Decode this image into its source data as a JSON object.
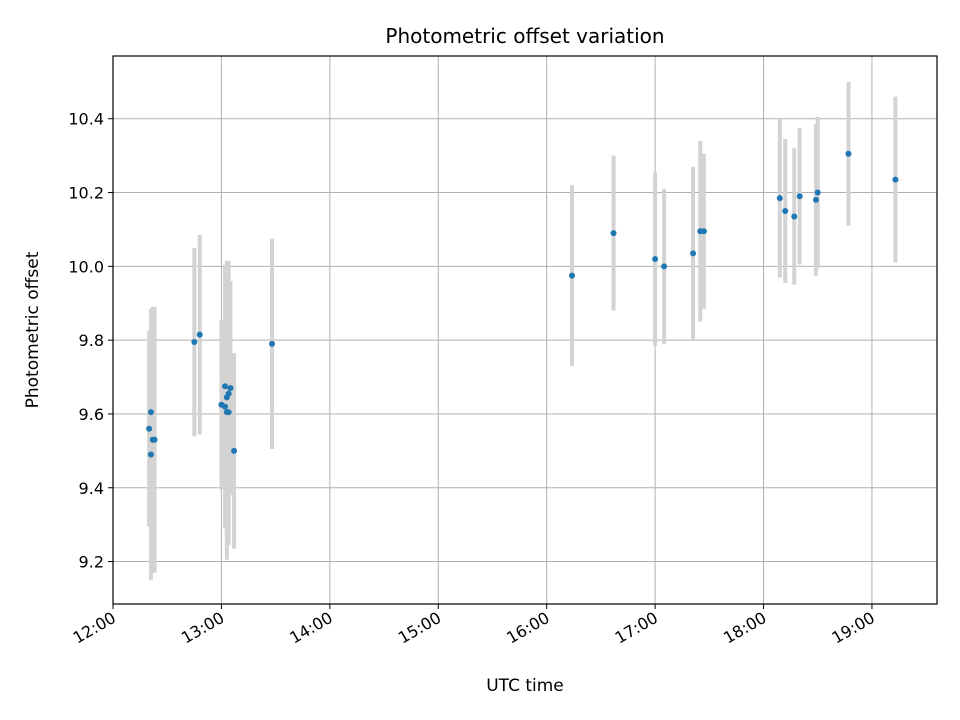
{
  "chart_data": {
    "type": "scatter",
    "title": "Photometric offset variation",
    "xlabel": "UTC time",
    "ylabel": "Photometric offset",
    "x_unit": "hours",
    "xlim": [
      "12:00",
      "19:36"
    ],
    "ylim": [
      9.085,
      10.57
    ],
    "x_ticks": [
      "12:00",
      "13:00",
      "14:00",
      "15:00",
      "16:00",
      "17:00",
      "18:00",
      "19:00"
    ],
    "y_ticks": [
      9.2,
      9.4,
      9.6,
      9.8,
      10.0,
      10.2,
      10.4
    ],
    "y_tick_labels": [
      "9.2",
      "9.4",
      "9.6",
      "9.8",
      "10.0",
      "10.2",
      "10.4"
    ],
    "grid": true,
    "point_color": "#1f77b4",
    "errorbar_color": "#d3d3d3",
    "points": [
      {
        "x": "12:20",
        "y": 9.56,
        "yerr": 0.265
      },
      {
        "x": "12:21",
        "y": 9.49,
        "yerr": 0.34
      },
      {
        "x": "12:21",
        "y": 9.605,
        "yerr": 0.28
      },
      {
        "x": "12:22",
        "y": 9.53,
        "yerr": 0.36
      },
      {
        "x": "12:23",
        "y": 9.53,
        "yerr": 0.36
      },
      {
        "x": "12:45",
        "y": 9.795,
        "yerr": 0.255
      },
      {
        "x": "12:48",
        "y": 9.815,
        "yerr": 0.27
      },
      {
        "x": "13:00",
        "y": 9.625,
        "yerr": 0.23
      },
      {
        "x": "13:02",
        "y": 9.62,
        "yerr": 0.33
      },
      {
        "x": "13:02",
        "y": 9.675,
        "yerr": 0.33
      },
      {
        "x": "13:03",
        "y": 9.605,
        "yerr": 0.4
      },
      {
        "x": "13:03",
        "y": 9.645,
        "yerr": 0.37
      },
      {
        "x": "13:04",
        "y": 9.655,
        "yerr": 0.36
      },
      {
        "x": "13:04",
        "y": 9.605,
        "yerr": 0.36
      },
      {
        "x": "13:05",
        "y": 9.67,
        "yerr": 0.29
      },
      {
        "x": "13:07",
        "y": 9.5,
        "yerr": 0.265
      },
      {
        "x": "13:28",
        "y": 9.79,
        "yerr": 0.285
      },
      {
        "x": "16:14",
        "y": 9.975,
        "yerr": 0.245
      },
      {
        "x": "16:37",
        "y": 10.09,
        "yerr": 0.21
      },
      {
        "x": "17:00",
        "y": 10.02,
        "yerr": 0.235
      },
      {
        "x": "17:05",
        "y": 10.0,
        "yerr": 0.21
      },
      {
        "x": "17:21",
        "y": 10.035,
        "yerr": 0.235
      },
      {
        "x": "17:25",
        "y": 10.095,
        "yerr": 0.245
      },
      {
        "x": "17:27",
        "y": 10.095,
        "yerr": 0.21
      },
      {
        "x": "18:09",
        "y": 10.185,
        "yerr": 0.215
      },
      {
        "x": "18:12",
        "y": 10.15,
        "yerr": 0.195
      },
      {
        "x": "18:17",
        "y": 10.135,
        "yerr": 0.185
      },
      {
        "x": "18:20",
        "y": 10.19,
        "yerr": 0.185
      },
      {
        "x": "18:29",
        "y": 10.18,
        "yerr": 0.205
      },
      {
        "x": "18:30",
        "y": 10.2,
        "yerr": 0.205
      },
      {
        "x": "18:47",
        "y": 10.305,
        "yerr": 0.195
      },
      {
        "x": "19:13",
        "y": 10.235,
        "yerr": 0.225
      }
    ]
  }
}
